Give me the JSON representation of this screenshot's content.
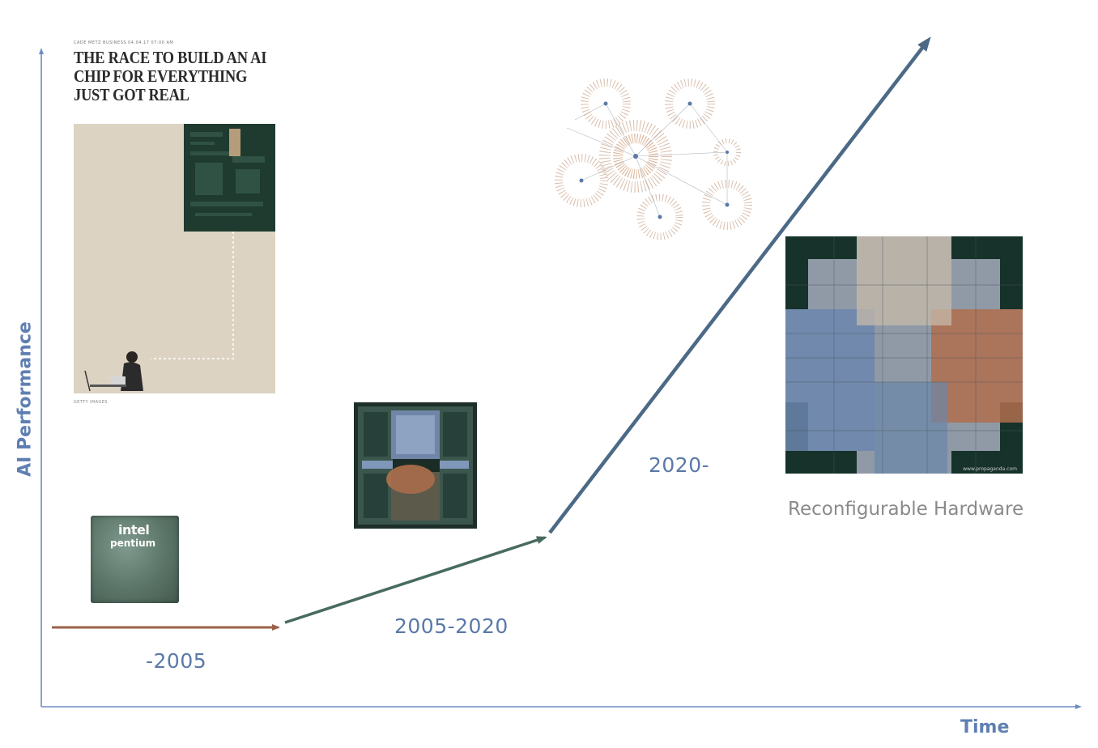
{
  "axes": {
    "y_label": "AI Performance",
    "x_label": "Time"
  },
  "periods": [
    {
      "label": "-2005",
      "color": "#9a6148"
    },
    {
      "label": "2005-2020",
      "color": "#486b5f"
    },
    {
      "label": "2020-",
      "color": "#4c6a86"
    }
  ],
  "reconfigurable_caption": "Reconfigurable Hardware",
  "article": {
    "byline": "CADE METZ BUSINESS 04.04.17 07:00 AM",
    "headline": "THE RACE TO BUILD AN AI CHIP FOR EVERYTHING JUST GOT REAL",
    "credit": "GETTY IMAGES"
  },
  "intel_chip": {
    "brand": "intel",
    "product": "pentium"
  },
  "fpga_watermark": "www.propaganda.com",
  "colors": {
    "axis": "#6e8cc0",
    "label": "#5f7fb3",
    "caption_gray": "#8a8a8a"
  }
}
